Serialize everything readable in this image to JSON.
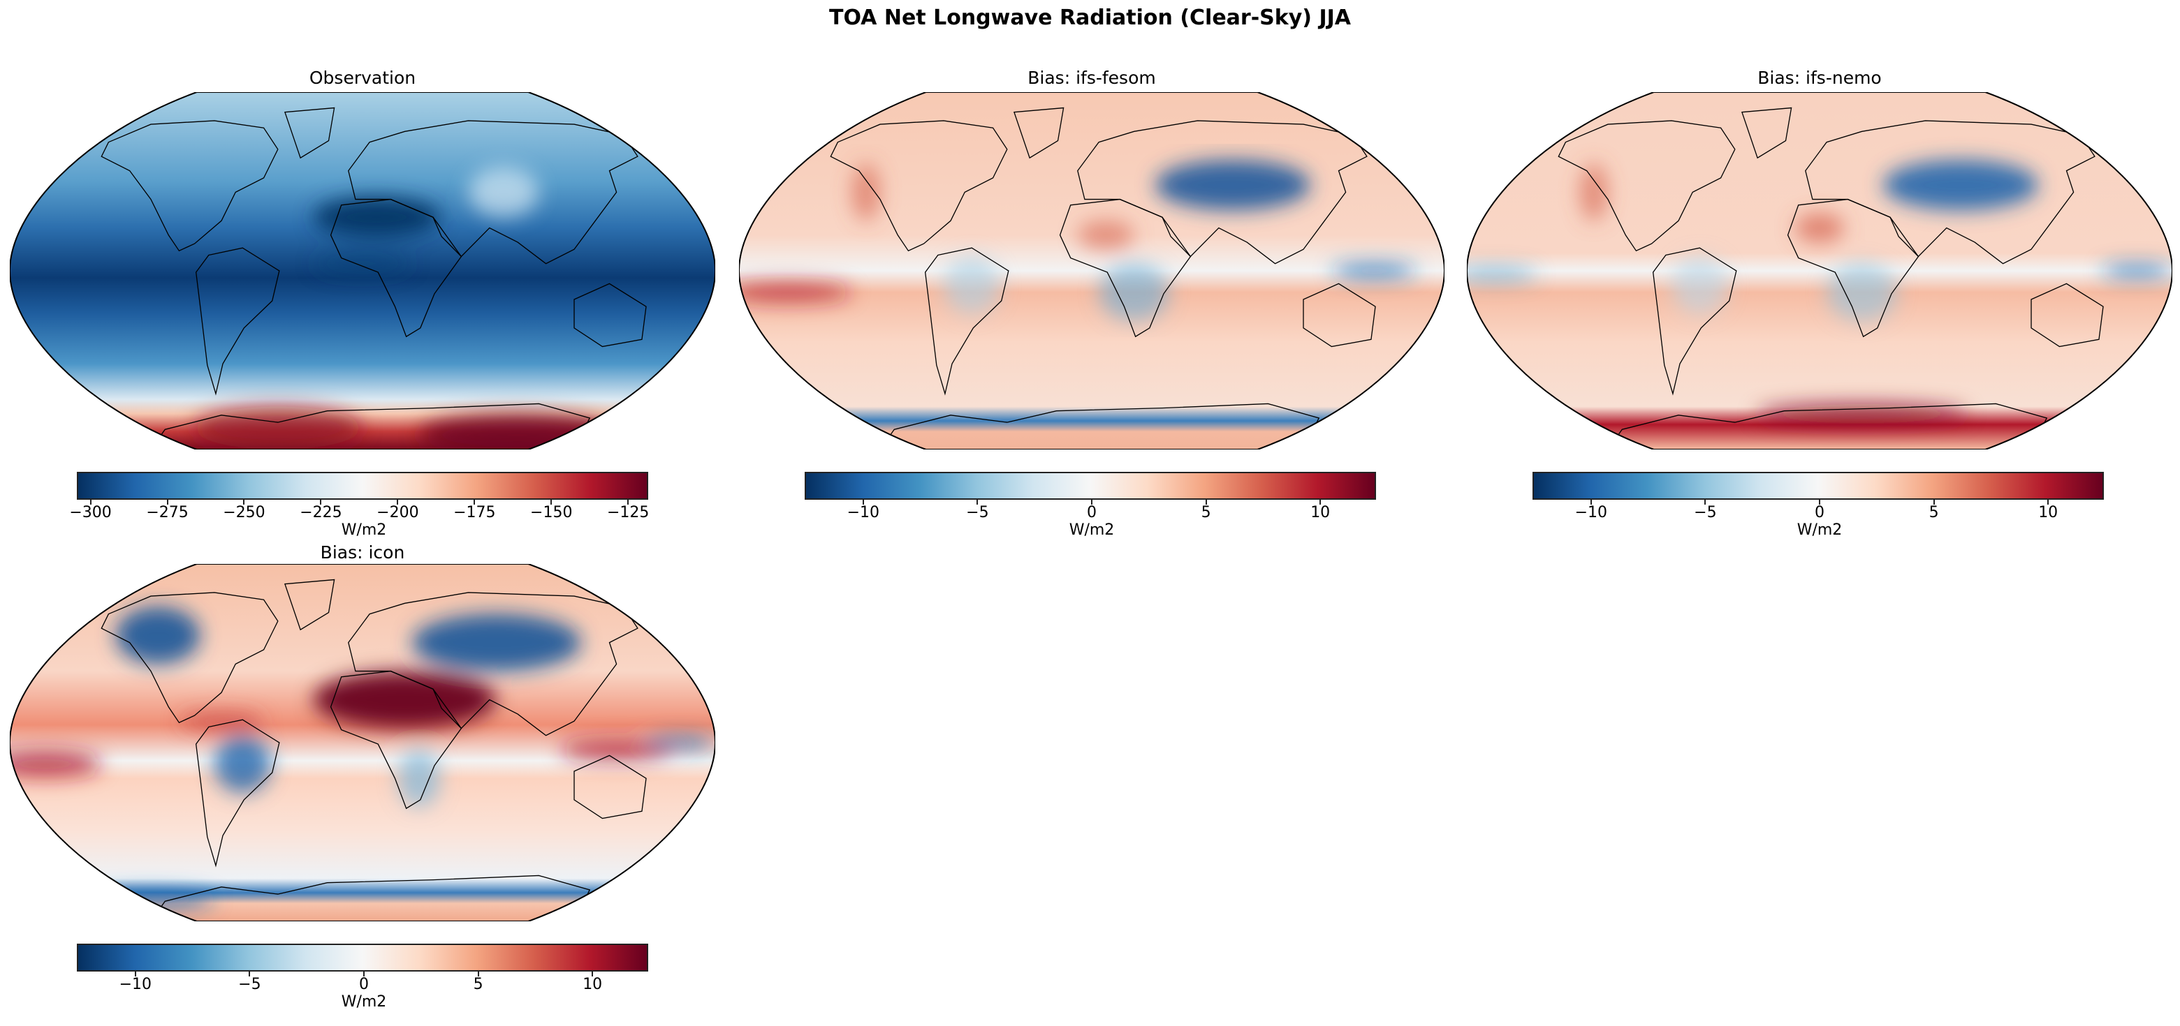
{
  "title": "TOA Net Longwave Radiation (Clear-Sky) JJA",
  "panels": [
    {
      "title": "Observation",
      "colorbar": {
        "label": "W/m2",
        "range": [
          -304,
          -118
        ],
        "ticks": [
          -300,
          -275,
          -250,
          -225,
          -200,
          -175,
          -150,
          -125
        ],
        "tick_labels": [
          "−300",
          "−275",
          "−250",
          "−225",
          "−200",
          "−175",
          "−150",
          "−125"
        ],
        "colormap": "RdBu_r"
      }
    },
    {
      "title": "Bias: ifs-fesom",
      "colorbar": {
        "label": "W/m2",
        "range": [
          -12.5,
          12.5
        ],
        "ticks": [
          -10,
          -5,
          0,
          5,
          10
        ],
        "tick_labels": [
          "−10",
          "−5",
          "0",
          "5",
          "10"
        ],
        "colormap": "RdBu_r"
      }
    },
    {
      "title": "Bias: ifs-nemo",
      "colorbar": {
        "label": "W/m2",
        "range": [
          -12.5,
          12.5
        ],
        "ticks": [
          -10,
          -5,
          0,
          5,
          10
        ],
        "tick_labels": [
          "−10",
          "−5",
          "0",
          "5",
          "10"
        ],
        "colormap": "RdBu_r"
      }
    },
    {
      "title": "Bias: icon",
      "colorbar": {
        "label": "W/m2",
        "range": [
          -12.5,
          12.5
        ],
        "ticks": [
          -10,
          -5,
          0,
          5,
          10
        ],
        "tick_labels": [
          "−10",
          "−5",
          "0",
          "5",
          "10"
        ],
        "colormap": "RdBu_r"
      }
    }
  ],
  "projection": "Robinson",
  "colors": {
    "cmap_low": "#053061",
    "cmap_mid": "#f7f7f7",
    "cmap_high": "#67001f",
    "coastline": "#000000"
  }
}
